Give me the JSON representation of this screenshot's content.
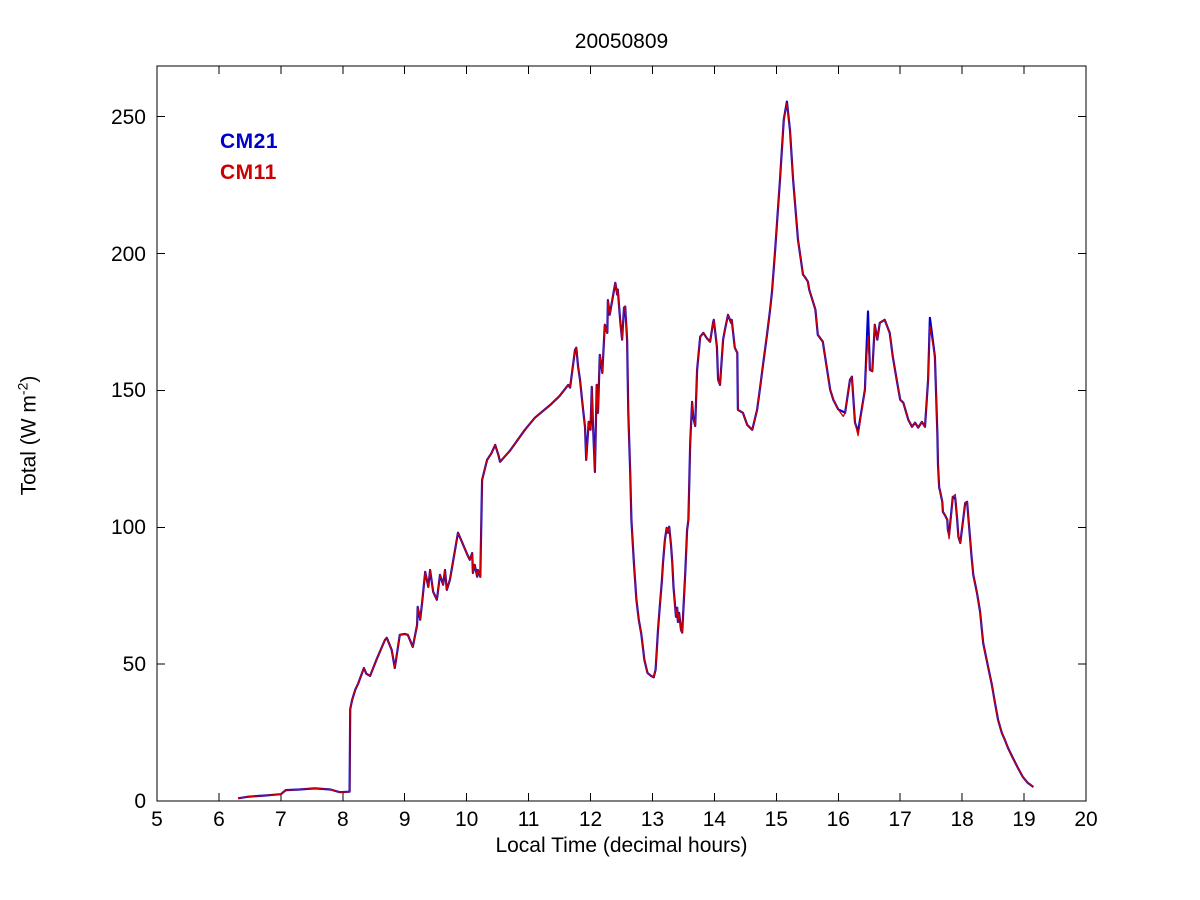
{
  "figure": {
    "title": "20050809",
    "xlabel": "Local Time (decimal hours)",
    "ylabel": {
      "prefix": "Total (W m",
      "superscript": "-2",
      "suffix": ")"
    },
    "background_color": "#FFFFFF",
    "axis_color": "#000000"
  },
  "legend": {
    "entries": [
      {
        "label": "CM21",
        "color": "#0000CC"
      },
      {
        "label": "CM11",
        "color": "#CC0000"
      }
    ],
    "position": "inside-top-left",
    "style": "text-only"
  },
  "chart_data": {
    "type": "line",
    "title": "20050809",
    "xlabel": "Local Time (decimal hours)",
    "ylabel": "Total (W m-2)",
    "xlim": [
      5,
      20
    ],
    "ylim": [
      0,
      268.5
    ],
    "xticks": [
      5,
      6,
      7,
      8,
      9,
      10,
      11,
      12,
      13,
      14,
      15,
      16,
      17,
      18,
      19,
      20
    ],
    "yticks": [
      0,
      50,
      100,
      150,
      200,
      250
    ],
    "grid": false,
    "legend_position": "top-left-inside",
    "series": [
      {
        "name": "CM21",
        "color": "#0000CC",
        "points": [
          [
            6.31,
            1.0
          ],
          [
            6.45,
            1.5
          ],
          [
            6.6,
            1.8
          ],
          [
            6.75,
            2.0
          ],
          [
            6.9,
            2.3
          ],
          [
            7.0,
            2.5
          ],
          [
            7.08,
            4.0
          ],
          [
            7.3,
            4.2
          ],
          [
            7.55,
            4.6
          ],
          [
            7.8,
            4.2
          ],
          [
            7.95,
            3.2
          ],
          [
            8.11,
            3.4
          ],
          [
            8.12,
            33.5
          ],
          [
            8.15,
            36.9
          ],
          [
            8.2,
            40.6
          ],
          [
            8.25,
            43.0
          ],
          [
            8.34,
            48.6
          ],
          [
            8.38,
            46.5
          ],
          [
            8.44,
            45.7
          ],
          [
            8.55,
            52.0
          ],
          [
            8.68,
            58.8
          ],
          [
            8.71,
            59.6
          ],
          [
            8.79,
            55.2
          ],
          [
            8.84,
            48.6
          ],
          [
            8.92,
            60.7
          ],
          [
            9.0,
            61.0
          ],
          [
            9.05,
            60.7
          ],
          [
            9.13,
            56.3
          ],
          [
            9.2,
            64.3
          ],
          [
            9.21,
            70.9
          ],
          [
            9.25,
            66.2
          ],
          [
            9.28,
            72.4
          ],
          [
            9.33,
            83.7
          ],
          [
            9.38,
            78.2
          ],
          [
            9.41,
            84.4
          ],
          [
            9.46,
            76.4
          ],
          [
            9.52,
            73.5
          ],
          [
            9.57,
            82.6
          ],
          [
            9.62,
            79.0
          ],
          [
            9.65,
            84.4
          ],
          [
            9.68,
            77.1
          ],
          [
            9.73,
            80.8
          ],
          [
            9.86,
            98.0
          ],
          [
            10.01,
            90.0
          ],
          [
            10.05,
            88.1
          ],
          [
            10.09,
            90.6
          ],
          [
            10.1,
            83.3
          ],
          [
            10.13,
            86.3
          ],
          [
            10.17,
            81.9
          ],
          [
            10.18,
            84.4
          ],
          [
            10.22,
            81.9
          ],
          [
            10.25,
            117.3
          ],
          [
            10.33,
            124.6
          ],
          [
            10.4,
            127.0
          ],
          [
            10.46,
            130.1
          ],
          [
            10.51,
            126.5
          ],
          [
            10.54,
            123.9
          ],
          [
            10.7,
            128.0
          ],
          [
            10.94,
            135.6
          ],
          [
            11.1,
            140.0
          ],
          [
            11.35,
            144.7
          ],
          [
            11.5,
            148.0
          ],
          [
            11.64,
            152.0
          ],
          [
            11.67,
            151.0
          ],
          [
            11.75,
            164.8
          ],
          [
            11.77,
            165.6
          ],
          [
            11.8,
            158.6
          ],
          [
            11.83,
            153.9
          ],
          [
            11.88,
            142.9
          ],
          [
            11.91,
            136.7
          ],
          [
            11.93,
            124.6
          ],
          [
            11.97,
            138.5
          ],
          [
            12.0,
            135.6
          ],
          [
            12.02,
            151.3
          ],
          [
            12.04,
            137.4
          ],
          [
            12.07,
            120.2
          ],
          [
            12.1,
            152.0
          ],
          [
            12.12,
            141.8
          ],
          [
            12.15,
            163.0
          ],
          [
            12.19,
            156.4
          ],
          [
            12.23,
            174.0
          ],
          [
            12.27,
            171.0
          ],
          [
            12.28,
            183.0
          ],
          [
            12.31,
            177.6
          ],
          [
            12.4,
            189.3
          ],
          [
            12.43,
            185.0
          ],
          [
            12.44,
            186.8
          ],
          [
            12.48,
            175.0
          ],
          [
            12.51,
            168.5
          ],
          [
            12.54,
            180.2
          ],
          [
            12.56,
            180.6
          ],
          [
            12.59,
            168.5
          ],
          [
            12.61,
            141.8
          ],
          [
            12.64,
            120.0
          ],
          [
            12.66,
            102.7
          ],
          [
            12.7,
            87.0
          ],
          [
            12.74,
            73.5
          ],
          [
            12.78,
            66.2
          ],
          [
            12.82,
            61.0
          ],
          [
            12.87,
            51.5
          ],
          [
            12.92,
            46.8
          ],
          [
            12.97,
            45.8
          ],
          [
            13.02,
            45.2
          ],
          [
            13.05,
            48.0
          ],
          [
            13.07,
            55.2
          ],
          [
            13.09,
            62.5
          ],
          [
            13.12,
            71.6
          ],
          [
            13.15,
            80.0
          ],
          [
            13.17,
            87.0
          ],
          [
            13.2,
            95.4
          ],
          [
            13.23,
            99.8
          ],
          [
            13.25,
            98.0
          ],
          [
            13.27,
            100.2
          ],
          [
            13.3,
            93.6
          ],
          [
            13.32,
            87.0
          ],
          [
            13.34,
            78.2
          ],
          [
            13.37,
            69.8
          ],
          [
            13.38,
            67.3
          ],
          [
            13.4,
            70.6
          ],
          [
            13.41,
            65.4
          ],
          [
            13.43,
            68.7
          ],
          [
            13.46,
            62.5
          ],
          [
            13.48,
            61.5
          ],
          [
            13.53,
            83.7
          ],
          [
            13.56,
            99.0
          ],
          [
            13.58,
            102.7
          ],
          [
            13.61,
            130.8
          ],
          [
            13.64,
            145.8
          ],
          [
            13.66,
            140.0
          ],
          [
            13.69,
            137.0
          ],
          [
            13.72,
            157.5
          ],
          [
            13.77,
            169.6
          ],
          [
            13.82,
            171.0
          ],
          [
            13.88,
            169.0
          ],
          [
            13.93,
            167.8
          ],
          [
            13.98,
            175.0
          ],
          [
            13.99,
            175.8
          ],
          [
            14.04,
            166.0
          ],
          [
            14.06,
            153.9
          ],
          [
            14.09,
            152.0
          ],
          [
            14.14,
            168.5
          ],
          [
            14.17,
            172.1
          ],
          [
            14.22,
            177.6
          ],
          [
            14.27,
            174.7
          ],
          [
            14.28,
            175.8
          ],
          [
            14.33,
            165.6
          ],
          [
            14.37,
            163.7
          ],
          [
            14.38,
            142.9
          ],
          [
            14.46,
            141.8
          ],
          [
            14.53,
            137.4
          ],
          [
            14.61,
            135.6
          ],
          [
            14.62,
            136.4
          ],
          [
            14.69,
            142.9
          ],
          [
            14.74,
            151.3
          ],
          [
            14.79,
            160.1
          ],
          [
            14.85,
            170.3
          ],
          [
            14.9,
            179.5
          ],
          [
            14.93,
            186.0
          ],
          [
            14.98,
            201.0
          ],
          [
            15.06,
            227.0
          ],
          [
            15.12,
            249.0
          ],
          [
            15.17,
            255.5
          ],
          [
            15.22,
            245.0
          ],
          [
            15.27,
            227.0
          ],
          [
            15.35,
            205.0
          ],
          [
            15.43,
            192.3
          ],
          [
            15.46,
            191.5
          ],
          [
            15.51,
            189.7
          ],
          [
            15.53,
            186.8
          ],
          [
            15.63,
            179.5
          ],
          [
            15.67,
            170.3
          ],
          [
            15.75,
            167.8
          ],
          [
            15.87,
            150.2
          ],
          [
            15.92,
            146.6
          ],
          [
            16.0,
            143.0
          ],
          [
            16.08,
            142.2
          ],
          [
            16.11,
            141.8
          ],
          [
            16.19,
            153.9
          ],
          [
            16.22,
            155.0
          ],
          [
            16.27,
            138.2
          ],
          [
            16.32,
            134.9
          ],
          [
            16.43,
            150.2
          ],
          [
            16.48,
            178.8
          ],
          [
            16.51,
            157.5
          ],
          [
            16.55,
            157.0
          ],
          [
            16.59,
            174.0
          ],
          [
            16.63,
            168.5
          ],
          [
            16.67,
            174.7
          ],
          [
            16.75,
            175.8
          ],
          [
            16.83,
            171.0
          ],
          [
            16.88,
            162.3
          ],
          [
            16.95,
            153.0
          ],
          [
            17.0,
            146.6
          ],
          [
            17.05,
            145.5
          ],
          [
            17.13,
            139.3
          ],
          [
            17.19,
            136.7
          ],
          [
            17.24,
            138.2
          ],
          [
            17.29,
            136.4
          ],
          [
            17.35,
            138.5
          ],
          [
            17.4,
            136.7
          ],
          [
            17.45,
            153.9
          ],
          [
            17.48,
            176.5
          ],
          [
            17.56,
            162.3
          ],
          [
            17.6,
            133.8
          ],
          [
            17.61,
            122.8
          ],
          [
            17.63,
            114.4
          ],
          [
            17.64,
            113.7
          ],
          [
            17.68,
            109.3
          ],
          [
            17.69,
            105.6
          ],
          [
            17.72,
            104.5
          ],
          [
            17.76,
            102.7
          ],
          [
            17.77,
            99.0
          ],
          [
            17.79,
            97.2
          ],
          [
            17.85,
            111.1
          ],
          [
            17.89,
            110.7
          ],
          [
            17.92,
            102.7
          ],
          [
            17.94,
            96.5
          ],
          [
            17.97,
            94.3
          ],
          [
            18.05,
            108.9
          ],
          [
            18.08,
            109.3
          ],
          [
            18.1,
            103.8
          ],
          [
            18.13,
            95.4
          ],
          [
            18.15,
            89.9
          ],
          [
            18.18,
            82.6
          ],
          [
            18.24,
            76.0
          ],
          [
            18.29,
            69.1
          ],
          [
            18.34,
            57.7
          ],
          [
            18.42,
            49.0
          ],
          [
            18.48,
            42.4
          ],
          [
            18.53,
            35.8
          ],
          [
            18.58,
            29.6
          ],
          [
            18.64,
            24.9
          ],
          [
            18.69,
            22.3
          ],
          [
            18.74,
            19.4
          ],
          [
            18.82,
            15.7
          ],
          [
            18.9,
            12.1
          ],
          [
            18.98,
            8.8
          ],
          [
            19.06,
            6.6
          ],
          [
            19.15,
            5.1
          ]
        ]
      },
      {
        "name": "CM11",
        "color": "#CC0000",
        "points_same_as": "CM21",
        "overrides": [
          [
            15.17,
            255.0
          ],
          [
            16.08,
            140.5
          ],
          [
            16.32,
            133.5
          ],
          [
            16.48,
            170.0
          ],
          [
            17.48,
            173.5
          ],
          [
            17.79,
            95.8
          ],
          [
            17.89,
            112.0
          ]
        ]
      }
    ]
  }
}
